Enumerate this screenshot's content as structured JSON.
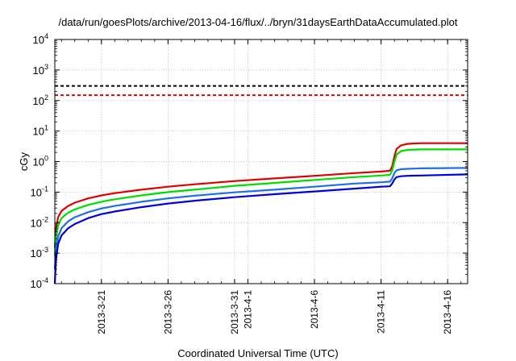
{
  "chart_data": {
    "type": "line",
    "title": "/data/run/goesPlots/archive/2013-04-16/flux/../bryn/31daysEarthDataAccumulated.plot",
    "xlabel": "Coordinated Universal Time (UTC)",
    "ylabel": "cGy",
    "y_scale": "log",
    "ylim": [
      0.0001,
      10000
    ],
    "y_ticks": [
      {
        "value": 0.0001,
        "base": "10",
        "exp": "-4"
      },
      {
        "value": 0.001,
        "base": "10",
        "exp": "-3"
      },
      {
        "value": 0.01,
        "base": "10",
        "exp": "-2"
      },
      {
        "value": 0.1,
        "base": "10",
        "exp": "-1"
      },
      {
        "value": 1,
        "base": "10",
        "exp": "0"
      },
      {
        "value": 10,
        "base": "10",
        "exp": "1"
      },
      {
        "value": 100,
        "base": "10",
        "exp": "2"
      },
      {
        "value": 1000,
        "base": "10",
        "exp": "3"
      },
      {
        "value": 10000,
        "base": "10",
        "exp": "4"
      }
    ],
    "xlim": [
      "2013-03-17 12:00",
      "2013-04-17 12:00"
    ],
    "x_ticks": [
      {
        "value": "2013-03-21",
        "label": "2013-3-21"
      },
      {
        "value": "2013-03-26",
        "label": "2013-3-26"
      },
      {
        "value": "2013-03-31",
        "label": "2013-3-31"
      },
      {
        "value": "2013-04-01",
        "label": "2013-4-1"
      },
      {
        "value": "2013-04-06",
        "label": "2013-4-6"
      },
      {
        "value": "2013-04-11",
        "label": "2013-4-11"
      },
      {
        "value": "2013-04-16",
        "label": "2013-4-16"
      }
    ],
    "grid": true,
    "reference_lines": [
      {
        "y": 300,
        "color": "#000000",
        "style": "dashed"
      },
      {
        "y": 150,
        "color": "#e00000",
        "style": "dashed"
      }
    ],
    "series": [
      {
        "color": "#e00000",
        "points": [
          [
            "2013-03-17 12:00",
            0.0015
          ],
          [
            "2013-03-17 14:00",
            0.006
          ],
          [
            "2013-03-17 18:00",
            0.015
          ],
          [
            "2013-03-18 00:00",
            0.024
          ],
          [
            "2013-03-18 12:00",
            0.035
          ],
          [
            "2013-03-19 00:00",
            0.045
          ],
          [
            "2013-03-20 00:00",
            0.062
          ],
          [
            "2013-03-21 00:00",
            0.078
          ],
          [
            "2013-03-22 00:00",
            0.092
          ],
          [
            "2013-03-24 00:00",
            0.12
          ],
          [
            "2013-03-26 00:00",
            0.15
          ],
          [
            "2013-03-28 00:00",
            0.18
          ],
          [
            "2013-03-31 00:00",
            0.23
          ],
          [
            "2013-04-03 00:00",
            0.28
          ],
          [
            "2013-04-06 00:00",
            0.34
          ],
          [
            "2013-04-09 00:00",
            0.42
          ],
          [
            "2013-04-11 00:00",
            0.47
          ],
          [
            "2013-04-11 16:00",
            0.5
          ],
          [
            "2013-04-11 20:00",
            0.7
          ],
          [
            "2013-04-12 00:00",
            1.5
          ],
          [
            "2013-04-12 04:00",
            2.6
          ],
          [
            "2013-04-12 12:00",
            3.4
          ],
          [
            "2013-04-13 00:00",
            3.8
          ],
          [
            "2013-04-14 00:00",
            4.0
          ],
          [
            "2013-04-17 12:00",
            4.0
          ]
        ]
      },
      {
        "color": "#00dd00",
        "points": [
          [
            "2013-03-17 12:00",
            0.0008
          ],
          [
            "2013-03-17 14:00",
            0.003
          ],
          [
            "2013-03-17 18:00",
            0.008
          ],
          [
            "2013-03-18 00:00",
            0.014
          ],
          [
            "2013-03-18 12:00",
            0.021
          ],
          [
            "2013-03-19 00:00",
            0.027
          ],
          [
            "2013-03-20 00:00",
            0.038
          ],
          [
            "2013-03-21 00:00",
            0.048
          ],
          [
            "2013-03-22 00:00",
            0.058
          ],
          [
            "2013-03-24 00:00",
            0.078
          ],
          [
            "2013-03-26 00:00",
            0.1
          ],
          [
            "2013-03-28 00:00",
            0.12
          ],
          [
            "2013-03-31 00:00",
            0.16
          ],
          [
            "2013-04-03 00:00",
            0.2
          ],
          [
            "2013-04-06 00:00",
            0.25
          ],
          [
            "2013-04-09 00:00",
            0.31
          ],
          [
            "2013-04-11 00:00",
            0.35
          ],
          [
            "2013-04-11 16:00",
            0.37
          ],
          [
            "2013-04-11 20:00",
            0.5
          ],
          [
            "2013-04-12 00:00",
            1.0
          ],
          [
            "2013-04-12 04:00",
            1.7
          ],
          [
            "2013-04-12 12:00",
            2.2
          ],
          [
            "2013-04-13 00:00",
            2.4
          ],
          [
            "2013-04-14 00:00",
            2.5
          ],
          [
            "2013-04-17 12:00",
            2.5
          ]
        ]
      },
      {
        "color": "#1e6fe6",
        "points": [
          [
            "2013-03-17 12:00",
            0.0003
          ],
          [
            "2013-03-17 14:00",
            0.0012
          ],
          [
            "2013-03-17 18:00",
            0.0035
          ],
          [
            "2013-03-18 00:00",
            0.0065
          ],
          [
            "2013-03-18 12:00",
            0.011
          ],
          [
            "2013-03-19 00:00",
            0.015
          ],
          [
            "2013-03-20 00:00",
            0.022
          ],
          [
            "2013-03-21 00:00",
            0.029
          ],
          [
            "2013-03-22 00:00",
            0.035
          ],
          [
            "2013-03-24 00:00",
            0.048
          ],
          [
            "2013-03-26 00:00",
            0.062
          ],
          [
            "2013-03-28 00:00",
            0.076
          ],
          [
            "2013-03-31 00:00",
            0.098
          ],
          [
            "2013-04-03 00:00",
            0.12
          ],
          [
            "2013-04-06 00:00",
            0.15
          ],
          [
            "2013-04-09 00:00",
            0.19
          ],
          [
            "2013-04-11 00:00",
            0.21
          ],
          [
            "2013-04-11 16:00",
            0.22
          ],
          [
            "2013-04-11 20:00",
            0.28
          ],
          [
            "2013-04-12 00:00",
            0.42
          ],
          [
            "2013-04-12 04:00",
            0.52
          ],
          [
            "2013-04-12 12:00",
            0.56
          ],
          [
            "2013-04-13 00:00",
            0.58
          ],
          [
            "2013-04-14 00:00",
            0.6
          ],
          [
            "2013-04-17 12:00",
            0.62
          ]
        ]
      },
      {
        "color": "#0000dd",
        "points": [
          [
            "2013-03-17 12:00",
            0.0001
          ],
          [
            "2013-03-17 14:00",
            0.0006
          ],
          [
            "2013-03-17 18:00",
            0.002
          ],
          [
            "2013-03-18 00:00",
            0.0038
          ],
          [
            "2013-03-18 12:00",
            0.0065
          ],
          [
            "2013-03-19 00:00",
            0.009
          ],
          [
            "2013-03-20 00:00",
            0.014
          ],
          [
            "2013-03-21 00:00",
            0.019
          ],
          [
            "2013-03-22 00:00",
            0.023
          ],
          [
            "2013-03-24 00:00",
            0.032
          ],
          [
            "2013-03-26 00:00",
            0.042
          ],
          [
            "2013-03-28 00:00",
            0.052
          ],
          [
            "2013-03-31 00:00",
            0.068
          ],
          [
            "2013-04-03 00:00",
            0.085
          ],
          [
            "2013-04-06 00:00",
            0.105
          ],
          [
            "2013-04-09 00:00",
            0.13
          ],
          [
            "2013-04-11 00:00",
            0.15
          ],
          [
            "2013-04-11 16:00",
            0.155
          ],
          [
            "2013-04-11 20:00",
            0.19
          ],
          [
            "2013-04-12 00:00",
            0.26
          ],
          [
            "2013-04-12 04:00",
            0.31
          ],
          [
            "2013-04-12 12:00",
            0.33
          ],
          [
            "2013-04-13 00:00",
            0.34
          ],
          [
            "2013-04-14 00:00",
            0.35
          ],
          [
            "2013-04-17 12:00",
            0.38
          ]
        ]
      }
    ]
  }
}
